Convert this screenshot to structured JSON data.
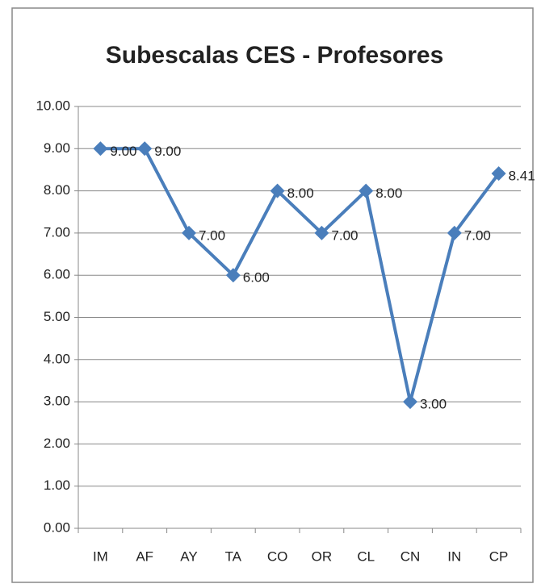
{
  "chart_data": {
    "type": "line",
    "title": "Subescalas CES - Profesores",
    "categories": [
      "IM",
      "AF",
      "AY",
      "TA",
      "CO",
      "OR",
      "CL",
      "CN",
      "IN",
      "CP"
    ],
    "series": [
      {
        "color": "#4a7ebb",
        "values": [
          9.0,
          9.0,
          7.0,
          6.0,
          8.0,
          7.0,
          8.0,
          3.0,
          7.0,
          8.41
        ],
        "value_labels": [
          "9.00",
          "9.00",
          "7.00",
          "6.00",
          "8.00",
          "7.00",
          "8.00",
          "3.00",
          "7.00",
          "8.41"
        ]
      }
    ],
    "ylim": [
      0,
      10
    ],
    "yticks": [
      {
        "value": 0,
        "label": "0.00"
      },
      {
        "value": 1,
        "label": "1.00"
      },
      {
        "value": 2,
        "label": "2.00"
      },
      {
        "value": 3,
        "label": "3.00"
      },
      {
        "value": 4,
        "label": "4.00"
      },
      {
        "value": 5,
        "label": "5.00"
      },
      {
        "value": 6,
        "label": "6.00"
      },
      {
        "value": 7,
        "label": "7.00"
      },
      {
        "value": 8,
        "label": "8.00"
      },
      {
        "value": 9,
        "label": "9.00"
      },
      {
        "value": 10,
        "label": "10.00"
      }
    ],
    "grid": true
  }
}
